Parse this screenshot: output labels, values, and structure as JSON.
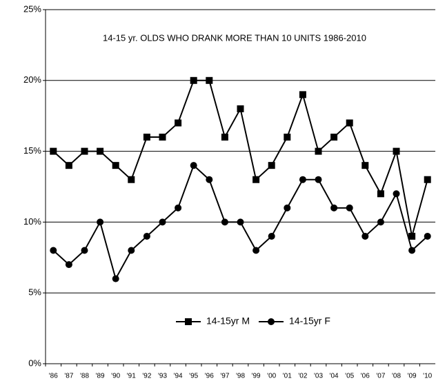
{
  "chart_data": {
    "type": "line",
    "title": "14-15 yr. OLDS WHO DRANK MORE THAN 10 UNITS 1986-2010",
    "categories": [
      "'86",
      "'87",
      "'88",
      "'89",
      "'90",
      "'91",
      "'92",
      "'93",
      "'94",
      "'95",
      "'96",
      "'97",
      "'98",
      "'99",
      "'00",
      "'01",
      "'02",
      "'03",
      "'04",
      "'05",
      "'06",
      "'07",
      "'08",
      "'09",
      "'10"
    ],
    "series": [
      {
        "name": "14-15yr M",
        "color": "#000000",
        "marker": "square",
        "values": [
          15,
          14,
          15,
          15,
          14,
          13,
          16,
          16,
          17,
          20,
          20,
          16,
          18,
          13,
          14,
          16,
          19,
          15,
          16,
          17,
          14,
          12,
          15,
          9,
          13
        ]
      },
      {
        "name": "14-15yr F",
        "color": "#000000",
        "marker": "circle",
        "values": [
          8,
          7,
          8,
          10,
          6,
          8,
          9,
          10,
          11,
          14,
          13,
          10,
          10,
          8,
          9,
          11,
          13,
          13,
          11,
          11,
          9,
          10,
          12,
          8,
          9
        ]
      }
    ],
    "ylim": [
      0,
      25
    ],
    "yticks": [
      {
        "value": 0,
        "label": "0%"
      },
      {
        "value": 5,
        "label": "5%"
      },
      {
        "value": 10,
        "label": "10%"
      },
      {
        "value": 15,
        "label": "15%"
      },
      {
        "value": 20,
        "label": "20%"
      },
      {
        "value": 25,
        "label": "25%"
      }
    ],
    "grid": true,
    "legend": "bottom"
  }
}
